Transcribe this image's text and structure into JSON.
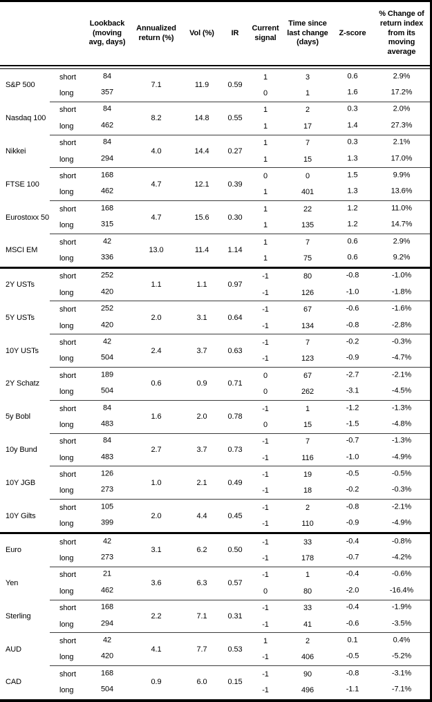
{
  "chart_data": {
    "type": "table",
    "headers": {
      "lookback": "Lookback (moving avg, days)",
      "annualized_return": "Annualized return (%)",
      "vol": "Vol (%)",
      "ir": "IR",
      "current_signal": "Current signal",
      "time_since": "Time since last change (days)",
      "z_score": "Z-score",
      "pct_change": "% Change of return index from its moving average"
    },
    "side_labels": {
      "short": "short",
      "long": "long"
    },
    "sections": [
      {
        "id": "equities",
        "assets": [
          {
            "name": "S&P 500",
            "annualized_return": "7.1",
            "vol": "11.9",
            "ir": "0.59",
            "short": {
              "lookback": "84",
              "signal": "1",
              "time_since": "3",
              "z_score": "0.6",
              "pct_change": "2.9%"
            },
            "long": {
              "lookback": "357",
              "signal": "0",
              "time_since": "1",
              "z_score": "1.6",
              "pct_change": "17.2%"
            }
          },
          {
            "name": "Nasdaq 100",
            "annualized_return": "8.2",
            "vol": "14.8",
            "ir": "0.55",
            "short": {
              "lookback": "84",
              "signal": "1",
              "time_since": "2",
              "z_score": "0.3",
              "pct_change": "2.0%"
            },
            "long": {
              "lookback": "462",
              "signal": "1",
              "time_since": "17",
              "z_score": "1.4",
              "pct_change": "27.3%"
            }
          },
          {
            "name": "Nikkei",
            "annualized_return": "4.0",
            "vol": "14.4",
            "ir": "0.27",
            "short": {
              "lookback": "84",
              "signal": "1",
              "time_since": "7",
              "z_score": "0.3",
              "pct_change": "2.1%"
            },
            "long": {
              "lookback": "294",
              "signal": "1",
              "time_since": "15",
              "z_score": "1.3",
              "pct_change": "17.0%"
            }
          },
          {
            "name": "FTSE 100",
            "annualized_return": "4.7",
            "vol": "12.1",
            "ir": "0.39",
            "short": {
              "lookback": "168",
              "signal": "0",
              "time_since": "0",
              "z_score": "1.5",
              "pct_change": "9.9%"
            },
            "long": {
              "lookback": "462",
              "signal": "1",
              "time_since": "401",
              "z_score": "1.3",
              "pct_change": "13.6%"
            }
          },
          {
            "name": "Eurostoxx 50",
            "annualized_return": "4.7",
            "vol": "15.6",
            "ir": "0.30",
            "short": {
              "lookback": "168",
              "signal": "1",
              "time_since": "22",
              "z_score": "1.2",
              "pct_change": "11.0%"
            },
            "long": {
              "lookback": "315",
              "signal": "1",
              "time_since": "135",
              "z_score": "1.2",
              "pct_change": "14.7%"
            }
          },
          {
            "name": "MSCI EM",
            "annualized_return": "13.0",
            "vol": "11.4",
            "ir": "1.14",
            "short": {
              "lookback": "42",
              "signal": "1",
              "time_since": "7",
              "z_score": "0.6",
              "pct_change": "2.9%"
            },
            "long": {
              "lookback": "336",
              "signal": "1",
              "time_since": "75",
              "z_score": "0.6",
              "pct_change": "9.2%"
            }
          }
        ]
      },
      {
        "id": "bonds",
        "assets": [
          {
            "name": "2Y USTs",
            "annualized_return": "1.1",
            "vol": "1.1",
            "ir": "0.97",
            "short": {
              "lookback": "252",
              "signal": "-1",
              "time_since": "80",
              "z_score": "-0.8",
              "pct_change": "-1.0%"
            },
            "long": {
              "lookback": "420",
              "signal": "-1",
              "time_since": "126",
              "z_score": "-1.0",
              "pct_change": "-1.8%"
            }
          },
          {
            "name": "5Y USTs",
            "annualized_return": "2.0",
            "vol": "3.1",
            "ir": "0.64",
            "short": {
              "lookback": "252",
              "signal": "-1",
              "time_since": "67",
              "z_score": "-0.6",
              "pct_change": "-1.6%"
            },
            "long": {
              "lookback": "420",
              "signal": "-1",
              "time_since": "134",
              "z_score": "-0.8",
              "pct_change": "-2.8%"
            }
          },
          {
            "name": "10Y USTs",
            "annualized_return": "2.4",
            "vol": "3.7",
            "ir": "0.63",
            "short": {
              "lookback": "42",
              "signal": "-1",
              "time_since": "7",
              "z_score": "-0.2",
              "pct_change": "-0.3%"
            },
            "long": {
              "lookback": "504",
              "signal": "-1",
              "time_since": "123",
              "z_score": "-0.9",
              "pct_change": "-4.7%"
            }
          },
          {
            "name": "2Y Schatz",
            "annualized_return": "0.6",
            "vol": "0.9",
            "ir": "0.71",
            "short": {
              "lookback": "189",
              "signal": "0",
              "time_since": "67",
              "z_score": "-2.7",
              "pct_change": "-2.1%"
            },
            "long": {
              "lookback": "504",
              "signal": "0",
              "time_since": "262",
              "z_score": "-3.1",
              "pct_change": "-4.5%"
            }
          },
          {
            "name": "5y Bobl",
            "annualized_return": "1.6",
            "vol": "2.0",
            "ir": "0.78",
            "short": {
              "lookback": "84",
              "signal": "-1",
              "time_since": "1",
              "z_score": "-1.2",
              "pct_change": "-1.3%"
            },
            "long": {
              "lookback": "483",
              "signal": "0",
              "time_since": "15",
              "z_score": "-1.5",
              "pct_change": "-4.8%"
            }
          },
          {
            "name": "10y Bund",
            "annualized_return": "2.7",
            "vol": "3.7",
            "ir": "0.73",
            "short": {
              "lookback": "84",
              "signal": "-1",
              "time_since": "7",
              "z_score": "-0.7",
              "pct_change": "-1.3%"
            },
            "long": {
              "lookback": "483",
              "signal": "-1",
              "time_since": "116",
              "z_score": "-1.0",
              "pct_change": "-4.9%"
            }
          },
          {
            "name": "10Y JGB",
            "annualized_return": "1.0",
            "vol": "2.1",
            "ir": "0.49",
            "short": {
              "lookback": "126",
              "signal": "-1",
              "time_since": "19",
              "z_score": "-0.5",
              "pct_change": "-0.5%"
            },
            "long": {
              "lookback": "273",
              "signal": "-1",
              "time_since": "18",
              "z_score": "-0.2",
              "pct_change": "-0.3%"
            }
          },
          {
            "name": "10Y Gilts",
            "annualized_return": "2.0",
            "vol": "4.4",
            "ir": "0.45",
            "short": {
              "lookback": "105",
              "signal": "-1",
              "time_since": "2",
              "z_score": "-0.8",
              "pct_change": "-2.1%"
            },
            "long": {
              "lookback": "399",
              "signal": "-1",
              "time_since": "110",
              "z_score": "-0.9",
              "pct_change": "-4.9%"
            }
          }
        ]
      },
      {
        "id": "currencies",
        "assets": [
          {
            "name": "Euro",
            "annualized_return": "3.1",
            "vol": "6.2",
            "ir": "0.50",
            "short": {
              "lookback": "42",
              "signal": "-1",
              "time_since": "33",
              "z_score": "-0.4",
              "pct_change": "-0.8%"
            },
            "long": {
              "lookback": "273",
              "signal": "-1",
              "time_since": "178",
              "z_score": "-0.7",
              "pct_change": "-4.2%"
            }
          },
          {
            "name": "Yen",
            "annualized_return": "3.6",
            "vol": "6.3",
            "ir": "0.57",
            "short": {
              "lookback": "21",
              "signal": "-1",
              "time_since": "1",
              "z_score": "-0.4",
              "pct_change": "-0.6%"
            },
            "long": {
              "lookback": "462",
              "signal": "0",
              "time_since": "80",
              "z_score": "-2.0",
              "pct_change": "-16.4%"
            }
          },
          {
            "name": "Sterling",
            "annualized_return": "2.2",
            "vol": "7.1",
            "ir": "0.31",
            "short": {
              "lookback": "168",
              "signal": "-1",
              "time_since": "33",
              "z_score": "-0.4",
              "pct_change": "-1.9%"
            },
            "long": {
              "lookback": "294",
              "signal": "-1",
              "time_since": "41",
              "z_score": "-0.6",
              "pct_change": "-3.5%"
            }
          },
          {
            "name": "AUD",
            "annualized_return": "4.1",
            "vol": "7.7",
            "ir": "0.53",
            "short": {
              "lookback": "42",
              "signal": "1",
              "time_since": "2",
              "z_score": "0.1",
              "pct_change": "0.4%"
            },
            "long": {
              "lookback": "420",
              "signal": "-1",
              "time_since": "406",
              "z_score": "-0.5",
              "pct_change": "-5.2%"
            }
          },
          {
            "name": "CAD",
            "annualized_return": "0.9",
            "vol": "6.0",
            "ir": "0.15",
            "short": {
              "lookback": "168",
              "signal": "-1",
              "time_since": "90",
              "z_score": "-0.8",
              "pct_change": "-3.1%"
            },
            "long": {
              "lookback": "504",
              "signal": "-1",
              "time_since": "496",
              "z_score": "-1.1",
              "pct_change": "-7.1%"
            }
          }
        ]
      }
    ]
  }
}
